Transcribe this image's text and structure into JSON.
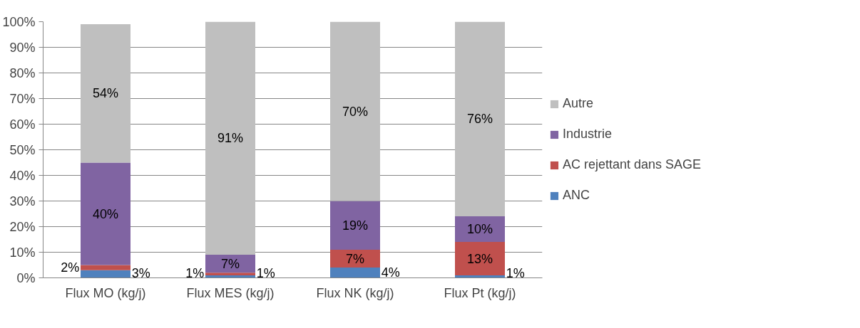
{
  "chart_data": {
    "type": "bar",
    "stacked": true,
    "categories": [
      "Flux MO (kg/j)",
      "Flux MES (kg/j)",
      "Flux NK (kg/j)",
      "Flux Pt (kg/j)"
    ],
    "series": [
      {
        "name": "ANC",
        "color": "#4f81bd",
        "values": [
          3,
          1,
          4,
          1
        ],
        "value_labels": [
          "3%",
          "1%",
          "4%",
          "1%"
        ]
      },
      {
        "name": "AC rejettant dans SAGE",
        "color": "#c0504d",
        "values": [
          2,
          1,
          7,
          13
        ],
        "value_labels": [
          "2%",
          "1%",
          "7%",
          "13%"
        ]
      },
      {
        "name": "Industrie",
        "color": "#8064a2",
        "values": [
          40,
          7,
          19,
          10
        ],
        "value_labels": [
          "40%",
          "7%",
          "19%",
          "10%"
        ]
      },
      {
        "name": "Autre",
        "color": "#bfbfbf",
        "values": [
          54,
          91,
          70,
          76
        ],
        "value_labels": [
          "54%",
          "91%",
          "70%",
          "76%"
        ]
      }
    ],
    "ylim": [
      0,
      100
    ],
    "yticks": [
      {
        "value": 0,
        "label": "0%"
      },
      {
        "value": 10,
        "label": "10%"
      },
      {
        "value": 20,
        "label": "20%"
      },
      {
        "value": 30,
        "label": "30%"
      },
      {
        "value": 40,
        "label": "40%"
      },
      {
        "value": 50,
        "label": "50%"
      },
      {
        "value": 60,
        "label": "60%"
      },
      {
        "value": 70,
        "label": "70%"
      },
      {
        "value": 80,
        "label": "80%"
      },
      {
        "value": 90,
        "label": "90%"
      },
      {
        "value": 100,
        "label": "100%"
      }
    ],
    "grid": "y",
    "legend": "right"
  }
}
